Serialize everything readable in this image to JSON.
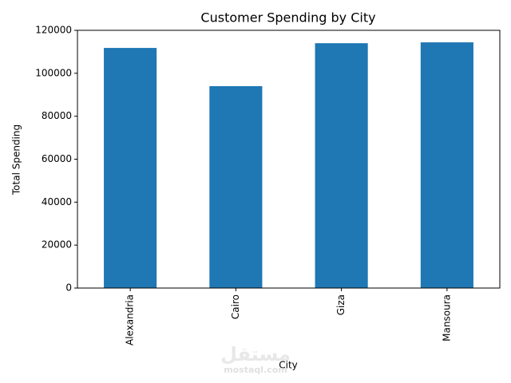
{
  "chart_data": {
    "type": "bar",
    "title": "Customer Spending by City",
    "x_label": "City",
    "y_label": "Total Spending",
    "categories": [
      "Alexandria",
      "Cairo",
      "Giza",
      "Mansoura"
    ],
    "values": [
      111800,
      94000,
      114000,
      114400
    ],
    "color": "#1f77b4",
    "ylim": [
      0,
      120000
    ],
    "yticks": [
      0,
      20000,
      40000,
      60000,
      80000,
      100000,
      120000
    ],
    "grid": false
  },
  "watermark": {
    "arabic": "مستقل",
    "latin": "mostaql.com"
  }
}
